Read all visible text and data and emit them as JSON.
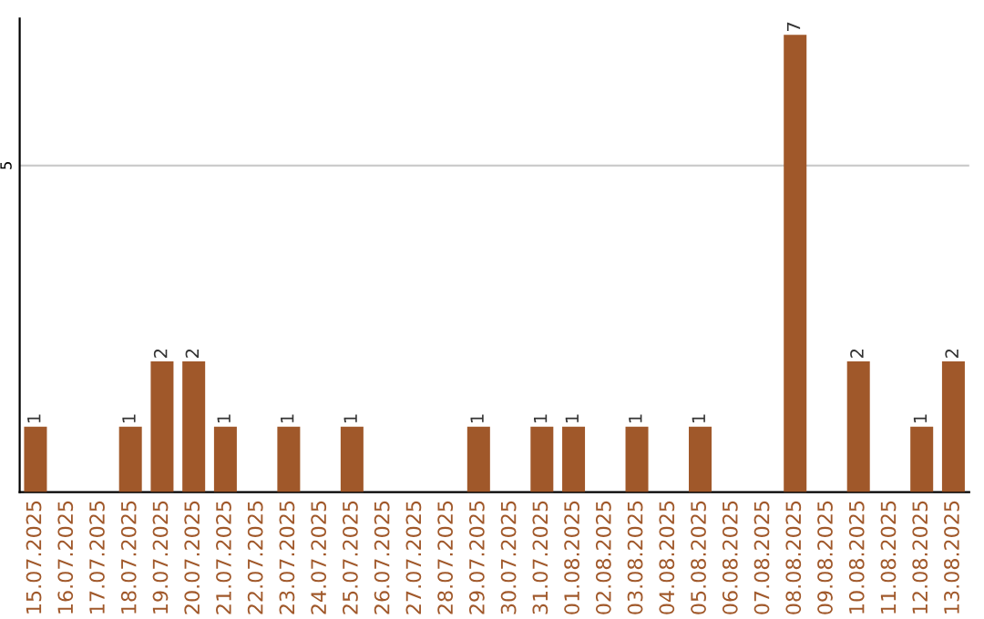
{
  "chart_data": {
    "type": "bar",
    "categories": [
      "15.07.2025",
      "16.07.2025",
      "17.07.2025",
      "18.07.2025",
      "19.07.2025",
      "20.07.2025",
      "21.07.2025",
      "22.07.2025",
      "23.07.2025",
      "24.07.2025",
      "25.07.2025",
      "26.07.2025",
      "27.07.2025",
      "28.07.2025",
      "29.07.2025",
      "30.07.2025",
      "31.07.2025",
      "01.08.2025",
      "02.08.2025",
      "03.08.2025",
      "04.08.2025",
      "05.08.2025",
      "06.08.2025",
      "07.08.2025",
      "08.08.2025",
      "09.08.2025",
      "10.08.2025",
      "11.08.2025",
      "12.08.2025",
      "13.08.2025"
    ],
    "values": [
      1,
      0,
      0,
      1,
      2,
      2,
      1,
      0,
      1,
      0,
      1,
      0,
      0,
      0,
      1,
      0,
      1,
      1,
      0,
      1,
      0,
      1,
      0,
      0,
      7,
      0,
      2,
      0,
      1,
      2
    ],
    "value_labels": [
      "1",
      null,
      null,
      "1",
      "2",
      "2",
      "1",
      null,
      "1",
      null,
      "1",
      null,
      null,
      null,
      "1",
      null,
      "1",
      "1",
      null,
      "1",
      null,
      "1",
      null,
      null,
      "7",
      null,
      "2",
      null,
      "1",
      "2"
    ],
    "color": "#a0582a",
    "ylim": [
      0,
      7.25
    ],
    "yticks": [
      5
    ],
    "grid": "y"
  }
}
